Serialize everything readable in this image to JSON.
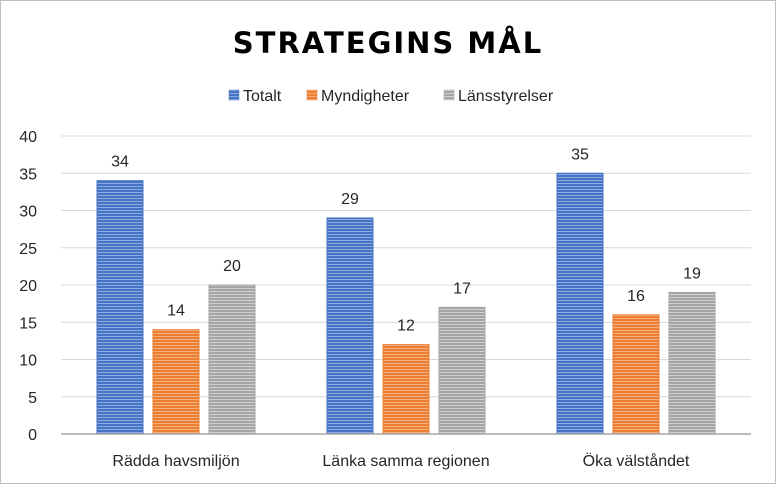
{
  "chart_data": {
    "type": "bar",
    "title": "STRATEGINS MÅL",
    "categories": [
      "Rädda havsmiljön",
      "Länka samma regionen",
      "Öka välståndet"
    ],
    "series": [
      {
        "name": "Totalt",
        "values": [
          34,
          29,
          35
        ],
        "color": "#4472c4"
      },
      {
        "name": "Myndigheter",
        "values": [
          14,
          12,
          16
        ],
        "color": "#ed7d31"
      },
      {
        "name": "Länsstyrelser",
        "values": [
          20,
          17,
          19
        ],
        "color": "#a5a5a5"
      }
    ],
    "ylim": [
      0,
      40
    ],
    "yticks": [
      "0",
      "5",
      "10",
      "15",
      "20",
      "25",
      "30",
      "35",
      "40"
    ],
    "grid": true,
    "legend_position": "top",
    "data_labels": true
  }
}
